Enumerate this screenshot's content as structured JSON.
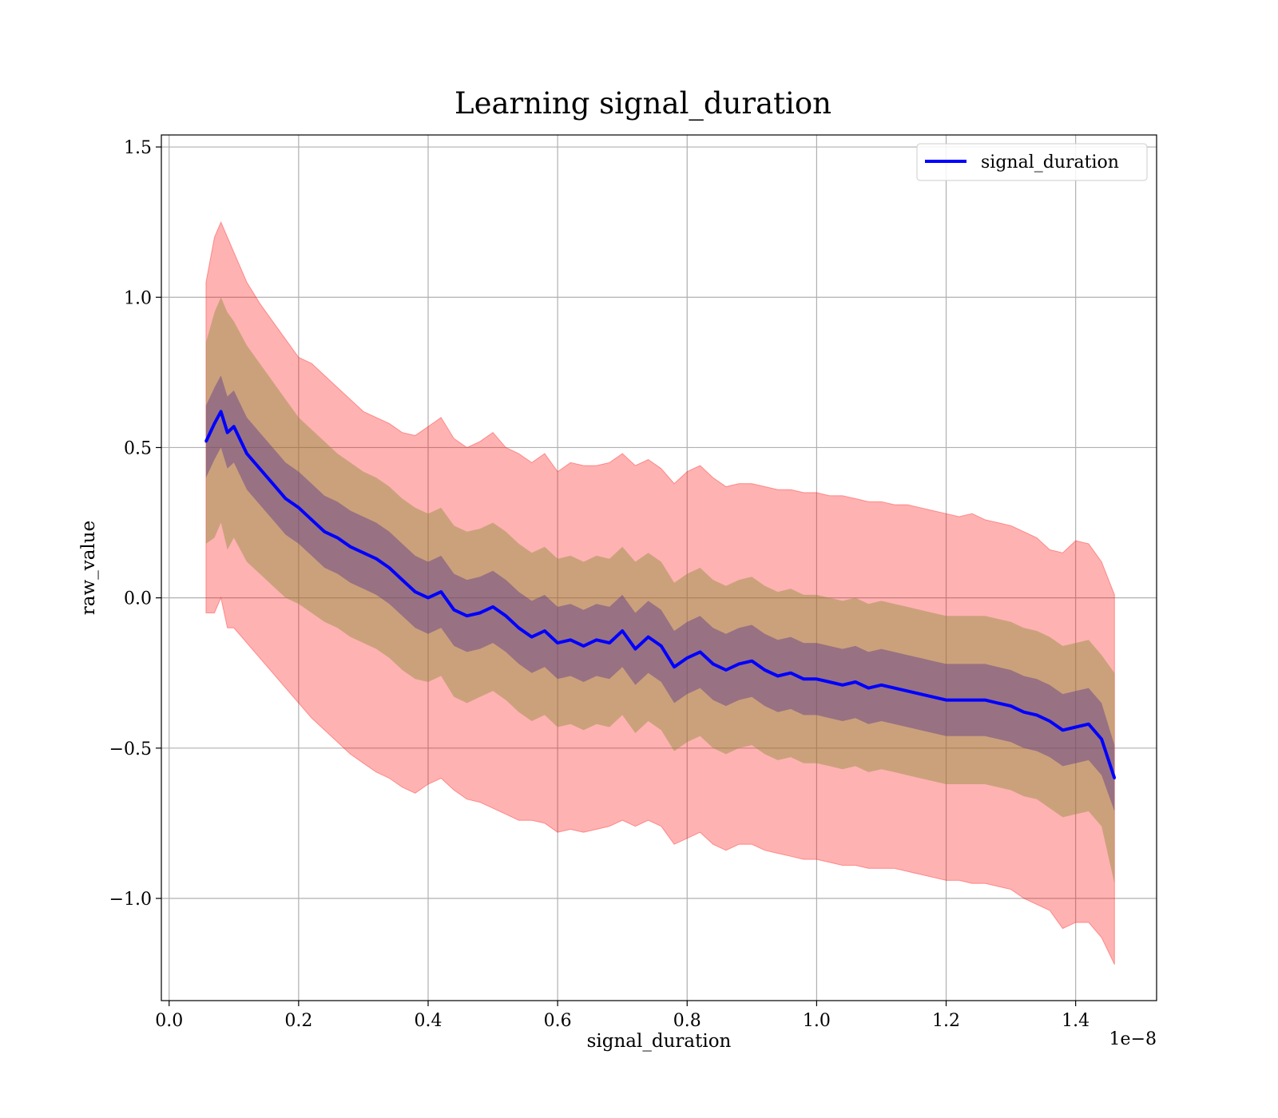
{
  "chart_data": {
    "type": "line",
    "title": "Learning signal_duration",
    "xlabel": "signal_duration",
    "ylabel": "raw_value",
    "x_offset_text": "1e−8",
    "x_ticks": [
      "0.0",
      "0.2",
      "0.4",
      "0.6",
      "0.8",
      "1.0",
      "1.2",
      "1.4"
    ],
    "y_ticks": [
      "−1.0",
      "−0.5",
      "0.0",
      "0.5",
      "1.0",
      "1.5"
    ],
    "xlim": [
      -0.012,
      1.525
    ],
    "ylim": [
      -1.34,
      1.54
    ],
    "grid": true,
    "legend": {
      "position": "top-right",
      "entries": [
        "signal_duration"
      ]
    },
    "colors": {
      "line": "#0000ff",
      "band": "#ff0000",
      "band_inner": "#8b8b3a",
      "band_core": "#5a3a8a"
    },
    "series": [
      {
        "name": "signal_duration",
        "x": [
          0.057,
          0.07,
          0.08,
          0.09,
          0.1,
          0.12,
          0.14,
          0.16,
          0.18,
          0.2,
          0.22,
          0.24,
          0.26,
          0.28,
          0.3,
          0.32,
          0.34,
          0.36,
          0.38,
          0.4,
          0.42,
          0.44,
          0.46,
          0.48,
          0.5,
          0.52,
          0.54,
          0.56,
          0.58,
          0.6,
          0.62,
          0.64,
          0.66,
          0.68,
          0.7,
          0.72,
          0.74,
          0.76,
          0.78,
          0.8,
          0.82,
          0.84,
          0.86,
          0.88,
          0.9,
          0.92,
          0.94,
          0.96,
          0.98,
          1.0,
          1.02,
          1.04,
          1.06,
          1.08,
          1.1,
          1.12,
          1.14,
          1.16,
          1.18,
          1.2,
          1.22,
          1.24,
          1.26,
          1.28,
          1.3,
          1.32,
          1.34,
          1.36,
          1.38,
          1.4,
          1.42,
          1.44,
          1.46
        ],
        "y": [
          0.52,
          0.58,
          0.62,
          0.55,
          0.57,
          0.48,
          0.43,
          0.38,
          0.33,
          0.3,
          0.26,
          0.22,
          0.2,
          0.17,
          0.15,
          0.13,
          0.1,
          0.06,
          0.02,
          0.0,
          0.02,
          -0.04,
          -0.06,
          -0.05,
          -0.03,
          -0.06,
          -0.1,
          -0.13,
          -0.11,
          -0.15,
          -0.14,
          -0.16,
          -0.14,
          -0.15,
          -0.11,
          -0.17,
          -0.13,
          -0.16,
          -0.23,
          -0.2,
          -0.18,
          -0.22,
          -0.24,
          -0.22,
          -0.21,
          -0.24,
          -0.26,
          -0.25,
          -0.27,
          -0.27,
          -0.28,
          -0.29,
          -0.28,
          -0.3,
          -0.29,
          -0.3,
          -0.31,
          -0.32,
          -0.33,
          -0.34,
          -0.34,
          -0.34,
          -0.34,
          -0.35,
          -0.36,
          -0.38,
          -0.39,
          -0.41,
          -0.44,
          -0.43,
          -0.42,
          -0.47,
          -0.6
        ],
        "band_outer_upper": [
          1.05,
          1.2,
          1.25,
          1.2,
          1.15,
          1.05,
          0.98,
          0.92,
          0.86,
          0.8,
          0.78,
          0.74,
          0.7,
          0.66,
          0.62,
          0.6,
          0.58,
          0.55,
          0.54,
          0.57,
          0.6,
          0.53,
          0.5,
          0.52,
          0.55,
          0.5,
          0.48,
          0.45,
          0.48,
          0.42,
          0.45,
          0.44,
          0.44,
          0.45,
          0.48,
          0.44,
          0.46,
          0.43,
          0.38,
          0.42,
          0.44,
          0.4,
          0.37,
          0.38,
          0.38,
          0.37,
          0.36,
          0.36,
          0.35,
          0.35,
          0.34,
          0.34,
          0.33,
          0.32,
          0.32,
          0.31,
          0.31,
          0.3,
          0.29,
          0.28,
          0.27,
          0.28,
          0.26,
          0.25,
          0.24,
          0.22,
          0.2,
          0.16,
          0.15,
          0.19,
          0.18,
          0.12,
          0.01
        ],
        "band_outer_lower": [
          -0.05,
          -0.05,
          0.0,
          -0.1,
          -0.1,
          -0.15,
          -0.2,
          -0.25,
          -0.3,
          -0.35,
          -0.4,
          -0.44,
          -0.48,
          -0.52,
          -0.55,
          -0.58,
          -0.6,
          -0.63,
          -0.65,
          -0.62,
          -0.6,
          -0.64,
          -0.67,
          -0.68,
          -0.7,
          -0.72,
          -0.74,
          -0.74,
          -0.75,
          -0.78,
          -0.77,
          -0.78,
          -0.77,
          -0.76,
          -0.74,
          -0.76,
          -0.74,
          -0.76,
          -0.82,
          -0.8,
          -0.78,
          -0.82,
          -0.84,
          -0.82,
          -0.82,
          -0.84,
          -0.85,
          -0.86,
          -0.87,
          -0.87,
          -0.88,
          -0.89,
          -0.89,
          -0.9,
          -0.9,
          -0.9,
          -0.91,
          -0.92,
          -0.93,
          -0.94,
          -0.94,
          -0.95,
          -0.95,
          -0.96,
          -0.97,
          -1.0,
          -1.02,
          -1.04,
          -1.1,
          -1.08,
          -1.08,
          -1.13,
          -1.22
        ],
        "band_mid_upper": [
          0.85,
          0.95,
          1.0,
          0.95,
          0.92,
          0.84,
          0.78,
          0.72,
          0.66,
          0.6,
          0.56,
          0.52,
          0.48,
          0.45,
          0.42,
          0.4,
          0.37,
          0.33,
          0.3,
          0.28,
          0.3,
          0.24,
          0.22,
          0.23,
          0.25,
          0.22,
          0.18,
          0.15,
          0.17,
          0.13,
          0.14,
          0.12,
          0.14,
          0.13,
          0.17,
          0.12,
          0.15,
          0.12,
          0.05,
          0.08,
          0.1,
          0.06,
          0.04,
          0.06,
          0.07,
          0.04,
          0.02,
          0.03,
          0.01,
          0.01,
          0.0,
          -0.01,
          0.0,
          -0.02,
          -0.01,
          -0.02,
          -0.03,
          -0.04,
          -0.05,
          -0.06,
          -0.06,
          -0.06,
          -0.06,
          -0.07,
          -0.08,
          -0.1,
          -0.11,
          -0.13,
          -0.16,
          -0.15,
          -0.14,
          -0.19,
          -0.25
        ],
        "band_mid_lower": [
          0.18,
          0.2,
          0.25,
          0.16,
          0.2,
          0.12,
          0.08,
          0.04,
          0.0,
          -0.02,
          -0.05,
          -0.08,
          -0.1,
          -0.13,
          -0.15,
          -0.17,
          -0.2,
          -0.24,
          -0.27,
          -0.28,
          -0.26,
          -0.33,
          -0.35,
          -0.33,
          -0.31,
          -0.34,
          -0.38,
          -0.41,
          -0.39,
          -0.43,
          -0.42,
          -0.44,
          -0.42,
          -0.43,
          -0.39,
          -0.45,
          -0.41,
          -0.44,
          -0.51,
          -0.48,
          -0.46,
          -0.5,
          -0.52,
          -0.5,
          -0.49,
          -0.52,
          -0.54,
          -0.53,
          -0.55,
          -0.55,
          -0.56,
          -0.57,
          -0.56,
          -0.58,
          -0.57,
          -0.58,
          -0.59,
          -0.6,
          -0.61,
          -0.62,
          -0.62,
          -0.62,
          -0.62,
          -0.63,
          -0.64,
          -0.66,
          -0.67,
          -0.7,
          -0.73,
          -0.72,
          -0.71,
          -0.76,
          -0.95
        ],
        "band_inner_upper": [
          0.64,
          0.7,
          0.74,
          0.67,
          0.69,
          0.6,
          0.55,
          0.5,
          0.45,
          0.42,
          0.38,
          0.34,
          0.32,
          0.29,
          0.27,
          0.25,
          0.22,
          0.18,
          0.14,
          0.12,
          0.14,
          0.08,
          0.06,
          0.07,
          0.09,
          0.06,
          0.02,
          -0.01,
          0.01,
          -0.03,
          -0.02,
          -0.04,
          -0.02,
          -0.03,
          0.01,
          -0.05,
          -0.01,
          -0.04,
          -0.11,
          -0.08,
          -0.06,
          -0.1,
          -0.12,
          -0.1,
          -0.09,
          -0.12,
          -0.14,
          -0.13,
          -0.15,
          -0.15,
          -0.16,
          -0.17,
          -0.16,
          -0.18,
          -0.17,
          -0.18,
          -0.19,
          -0.2,
          -0.21,
          -0.22,
          -0.22,
          -0.22,
          -0.22,
          -0.23,
          -0.24,
          -0.26,
          -0.27,
          -0.29,
          -0.32,
          -0.31,
          -0.3,
          -0.35,
          -0.49
        ],
        "band_inner_lower": [
          0.4,
          0.46,
          0.5,
          0.43,
          0.45,
          0.36,
          0.31,
          0.26,
          0.21,
          0.18,
          0.14,
          0.1,
          0.08,
          0.05,
          0.03,
          0.01,
          -0.02,
          -0.06,
          -0.1,
          -0.12,
          -0.1,
          -0.16,
          -0.18,
          -0.17,
          -0.15,
          -0.18,
          -0.22,
          -0.25,
          -0.23,
          -0.27,
          -0.26,
          -0.28,
          -0.26,
          -0.27,
          -0.23,
          -0.29,
          -0.25,
          -0.28,
          -0.35,
          -0.32,
          -0.3,
          -0.34,
          -0.36,
          -0.34,
          -0.33,
          -0.36,
          -0.38,
          -0.37,
          -0.39,
          -0.39,
          -0.4,
          -0.41,
          -0.4,
          -0.42,
          -0.41,
          -0.42,
          -0.43,
          -0.44,
          -0.45,
          -0.46,
          -0.46,
          -0.46,
          -0.46,
          -0.47,
          -0.48,
          -0.5,
          -0.51,
          -0.53,
          -0.56,
          -0.55,
          -0.54,
          -0.59,
          -0.71
        ]
      }
    ]
  }
}
